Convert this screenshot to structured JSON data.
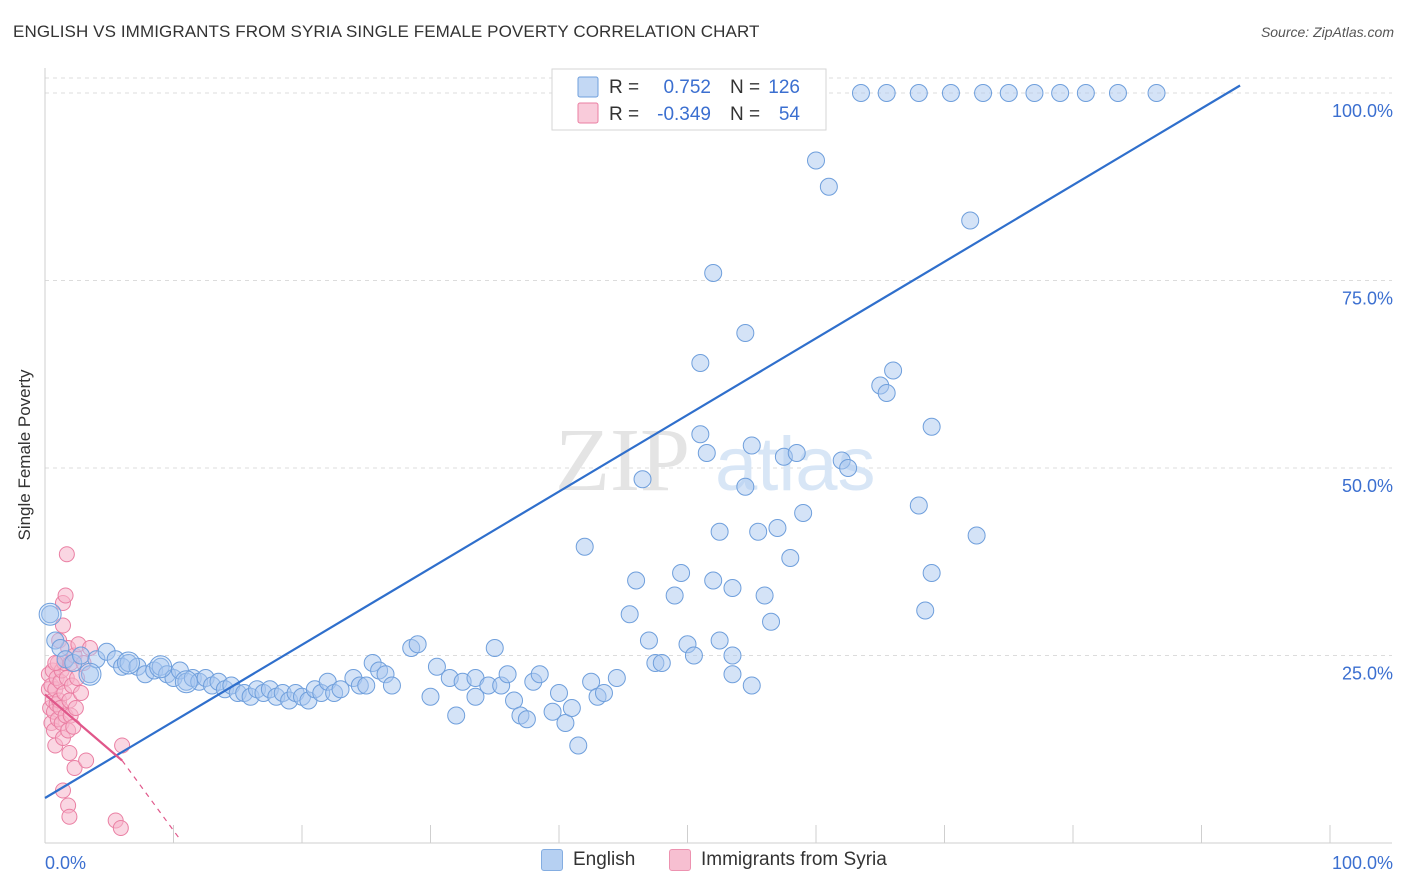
{
  "title": "ENGLISH VS IMMIGRANTS FROM SYRIA SINGLE FEMALE POVERTY CORRELATION CHART",
  "source": "Source: ZipAtlas.com",
  "watermark": {
    "part1": "ZIP",
    "part2": "atlas"
  },
  "legend_box": [
    {
      "r_label": "R =",
      "r_value": "0.752",
      "n_label": "N =",
      "n_value": "126"
    },
    {
      "r_label": "R =",
      "r_value": "-0.349",
      "n_label": "N =",
      "n_value": "54"
    }
  ],
  "colors": {
    "english_fill": "#aac8f0",
    "english_stroke": "#6f9fdc",
    "english_line": "#2f6fcc",
    "syria_fill": "#f6b5ca",
    "syria_stroke": "#ea7fa3",
    "syria_line": "#e0578a",
    "value_text": "#3b6fd0",
    "grid": "#dcdcdc"
  },
  "chart_data": {
    "type": "scatter",
    "title": "ENGLISH VS IMMIGRANTS FROM SYRIA SINGLE FEMALE POVERTY CORRELATION CHART",
    "xlabel": "",
    "ylabel": "Single Female Poverty",
    "xlim": [
      0,
      100
    ],
    "ylim": [
      0,
      102
    ],
    "x_tick_labels": [
      "0.0%",
      "100.0%"
    ],
    "y_ticks": [
      25,
      50,
      75,
      100
    ],
    "y_tick_labels": [
      "25.0%",
      "50.0%",
      "75.0%",
      "100.0%"
    ],
    "grid": "horizontal dashed",
    "legend_position": "top-center",
    "series": [
      {
        "name": "English",
        "r": 0.752,
        "n": 126,
        "trend": {
          "x": [
            0,
            93
          ],
          "y": [
            6,
            101
          ]
        },
        "points": [
          [
            0.4,
            30.5
          ],
          [
            0.8,
            27
          ],
          [
            1.2,
            26
          ],
          [
            1.6,
            24.5
          ],
          [
            2.2,
            24
          ],
          [
            2.8,
            25
          ],
          [
            3.5,
            22.5
          ],
          [
            4.0,
            24.5
          ],
          [
            4.8,
            25.5
          ],
          [
            5.5,
            24.5
          ],
          [
            6.0,
            23.5
          ],
          [
            6.5,
            24
          ],
          [
            7.2,
            23.5
          ],
          [
            7.8,
            22.5
          ],
          [
            8.5,
            23
          ],
          [
            9.0,
            23.5
          ],
          [
            9.5,
            22.5
          ],
          [
            10.0,
            22
          ],
          [
            10.5,
            23
          ],
          [
            11.0,
            21.5
          ],
          [
            11.5,
            22
          ],
          [
            12.0,
            21.5
          ],
          [
            12.5,
            22
          ],
          [
            13.0,
            21
          ],
          [
            13.5,
            21.5
          ],
          [
            14.0,
            20.5
          ],
          [
            14.5,
            21
          ],
          [
            15.0,
            20
          ],
          [
            15.5,
            20
          ],
          [
            16.0,
            19.5
          ],
          [
            16.5,
            20.5
          ],
          [
            17.0,
            20
          ],
          [
            17.5,
            20.5
          ],
          [
            18.0,
            19.5
          ],
          [
            18.5,
            20
          ],
          [
            19.0,
            19
          ],
          [
            19.5,
            20
          ],
          [
            20.0,
            19.5
          ],
          [
            20.5,
            19
          ],
          [
            21.0,
            20.5
          ],
          [
            21.5,
            20
          ],
          [
            22.0,
            21.5
          ],
          [
            22.5,
            20
          ],
          [
            23.0,
            20.5
          ],
          [
            24.0,
            22
          ],
          [
            24.5,
            21
          ],
          [
            25.0,
            21
          ],
          [
            25.5,
            24
          ],
          [
            26.0,
            23
          ],
          [
            26.5,
            22.5
          ],
          [
            27.0,
            21
          ],
          [
            28.5,
            26
          ],
          [
            29.0,
            26.5
          ],
          [
            30.0,
            19.5
          ],
          [
            30.5,
            23.5
          ],
          [
            31.5,
            22
          ],
          [
            32.0,
            17
          ],
          [
            32.5,
            21.5
          ],
          [
            33.5,
            22
          ],
          [
            33.5,
            19.5
          ],
          [
            34.5,
            21
          ],
          [
            35.0,
            26
          ],
          [
            35.5,
            21
          ],
          [
            36.0,
            22.5
          ],
          [
            36.5,
            19
          ],
          [
            37.0,
            17
          ],
          [
            37.5,
            16.5
          ],
          [
            38.0,
            21.5
          ],
          [
            38.5,
            22.5
          ],
          [
            39.5,
            17.5
          ],
          [
            40.0,
            20
          ],
          [
            40.5,
            16
          ],
          [
            41.0,
            18
          ],
          [
            41.5,
            13
          ],
          [
            42.0,
            39.5
          ],
          [
            42.5,
            21.5
          ],
          [
            43.0,
            19.5
          ],
          [
            43.5,
            20
          ],
          [
            44.5,
            22
          ],
          [
            46.0,
            35
          ],
          [
            45.5,
            30.5
          ],
          [
            46.5,
            48.5
          ],
          [
            47.0,
            27
          ],
          [
            47.5,
            24
          ],
          [
            48.0,
            24
          ],
          [
            49.0,
            33
          ],
          [
            49.5,
            36
          ],
          [
            50.0,
            26.5
          ],
          [
            50.5,
            25
          ],
          [
            51.0,
            54.5
          ],
          [
            51.5,
            52
          ],
          [
            52.0,
            35
          ],
          [
            52.5,
            27
          ],
          [
            52.5,
            41.5
          ],
          [
            53.5,
            34
          ],
          [
            53.5,
            22.5
          ],
          [
            53.5,
            25
          ],
          [
            54.5,
            47.5
          ],
          [
            55.0,
            53
          ],
          [
            55.5,
            41.5
          ],
          [
            55.0,
            21
          ],
          [
            56.0,
            33
          ],
          [
            56.5,
            29.5
          ],
          [
            57.0,
            42
          ],
          [
            57.5,
            51.5
          ],
          [
            58.0,
            38
          ],
          [
            58.5,
            52
          ],
          [
            59.0,
            44
          ],
          [
            60.0,
            91
          ],
          [
            61.0,
            87.5
          ],
          [
            62.0,
            51
          ],
          [
            62.5,
            50
          ],
          [
            65.0,
            61
          ],
          [
            65.5,
            60
          ],
          [
            66.0,
            63
          ],
          [
            68.0,
            45
          ],
          [
            68.5,
            31
          ],
          [
            69.0,
            55.5
          ],
          [
            69.0,
            36
          ],
          [
            72.0,
            83
          ],
          [
            72.5,
            41
          ],
          [
            86.5,
            100
          ],
          [
            63.5,
            100
          ],
          [
            65.5,
            100
          ],
          [
            68.0,
            100
          ],
          [
            70.5,
            100
          ],
          [
            73.0,
            100
          ],
          [
            75.0,
            100
          ],
          [
            77.0,
            100
          ],
          [
            79.0,
            100
          ],
          [
            81.0,
            100
          ],
          [
            83.5,
            100
          ],
          [
            52.0,
            76
          ],
          [
            54.5,
            68
          ],
          [
            51.0,
            64
          ]
        ]
      },
      {
        "name": "Immigrants from Syria",
        "r": -0.349,
        "n": 54,
        "trend": {
          "x": [
            0,
            6
          ],
          "y": [
            19.8,
            11
          ],
          "dashed_to": {
            "x": 10.5,
            "y": 0.5
          }
        },
        "points": [
          [
            0.3,
            22.5
          ],
          [
            0.3,
            20.5
          ],
          [
            0.4,
            18
          ],
          [
            0.5,
            16
          ],
          [
            0.5,
            21
          ],
          [
            0.6,
            23
          ],
          [
            0.6,
            19
          ],
          [
            0.7,
            17.5
          ],
          [
            0.7,
            15
          ],
          [
            0.8,
            20.5
          ],
          [
            0.8,
            13
          ],
          [
            0.9,
            18.5
          ],
          [
            0.9,
            22
          ],
          [
            1.0,
            16.5
          ],
          [
            1.0,
            24
          ],
          [
            1.1,
            19
          ],
          [
            1.1,
            27
          ],
          [
            1.2,
            18
          ],
          [
            1.2,
            21.5
          ],
          [
            1.3,
            16
          ],
          [
            1.3,
            23
          ],
          [
            1.4,
            32
          ],
          [
            1.4,
            14
          ],
          [
            1.4,
            29
          ],
          [
            1.5,
            24
          ],
          [
            1.5,
            20
          ],
          [
            1.6,
            17
          ],
          [
            1.6,
            33
          ],
          [
            1.7,
            38.5
          ],
          [
            1.7,
            22
          ],
          [
            1.8,
            26
          ],
          [
            1.8,
            15
          ],
          [
            1.9,
            19
          ],
          [
            1.9,
            12
          ],
          [
            2.0,
            24
          ],
          [
            2.0,
            17
          ],
          [
            2.1,
            21
          ],
          [
            2.2,
            15.5
          ],
          [
            2.3,
            25
          ],
          [
            2.3,
            10
          ],
          [
            2.4,
            18
          ],
          [
            2.5,
            22
          ],
          [
            2.6,
            26.5
          ],
          [
            2.8,
            20
          ],
          [
            3.0,
            24
          ],
          [
            3.2,
            11
          ],
          [
            3.5,
            26
          ],
          [
            1.4,
            7
          ],
          [
            1.8,
            5
          ],
          [
            1.9,
            3.5
          ],
          [
            5.5,
            3
          ],
          [
            5.9,
            2
          ],
          [
            6.0,
            13
          ],
          [
            0.8,
            24
          ]
        ]
      }
    ]
  },
  "legend_bottom": [
    {
      "label": "English"
    },
    {
      "label": "Immigrants from Syria"
    }
  ]
}
